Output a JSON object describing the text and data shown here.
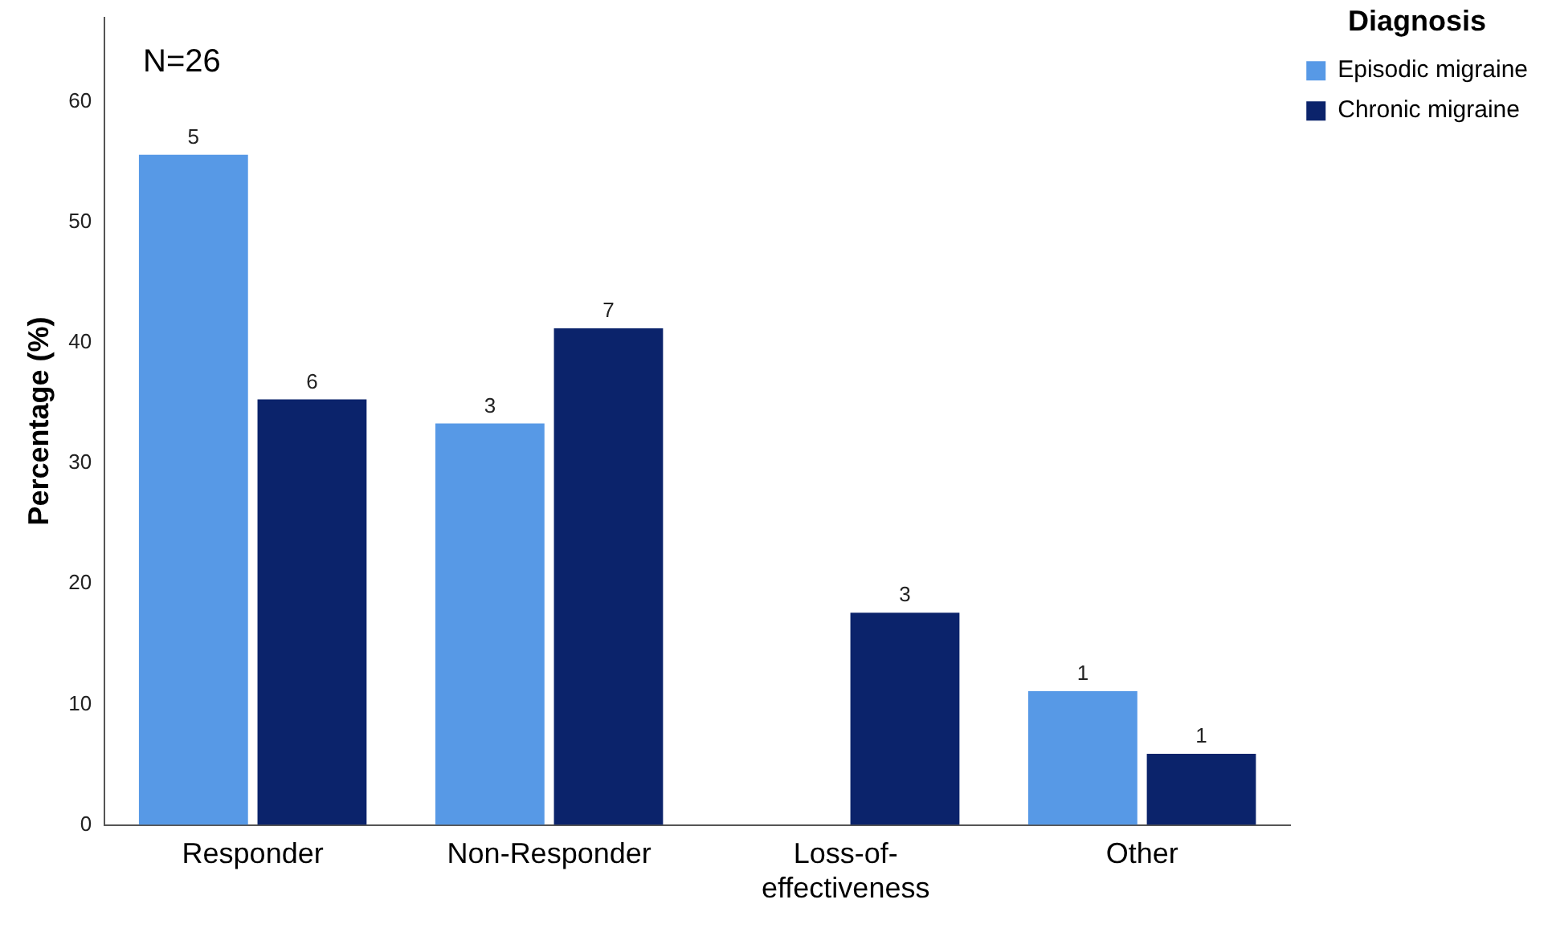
{
  "chart_data": {
    "type": "bar",
    "ylabel": "Percentage (%)",
    "legend_title": "Diagnosis",
    "legend": "top right",
    "grid": false,
    "annotations": [
      "N=26",
      {
        "text": "5",
        "x": "Responder",
        "y": 55.6
      },
      {
        "text": "6",
        "x": "Responder",
        "y": 35.3
      },
      {
        "text": "3",
        "x": "Non-Responder",
        "y": 33.3
      },
      {
        "text": "7",
        "x": "Non-Responder",
        "y": 41.2
      },
      {
        "text": "3",
        "x": "Loss-of-effectiveness",
        "y": 17.6
      },
      {
        "text": "1",
        "x": "Other",
        "y": 11.1
      },
      {
        "text": "1",
        "x": "Other",
        "y": 5.9
      }
    ],
    "categories": [
      "Responder",
      "Non-Responder",
      "Loss-of-effectiveness",
      "Other"
    ],
    "ylim": [
      0,
      67
    ],
    "yticks": [
      0,
      10,
      20,
      30,
      40,
      50,
      60
    ],
    "series": [
      {
        "name": "Episodic migraine",
        "color": "#5799e6",
        "values": [
          55.6,
          33.3,
          0,
          11.1
        ]
      },
      {
        "name": "Chronic migraine",
        "color": "#0b236b",
        "values": [
          35.3,
          41.2,
          17.6,
          5.9
        ]
      }
    ]
  }
}
